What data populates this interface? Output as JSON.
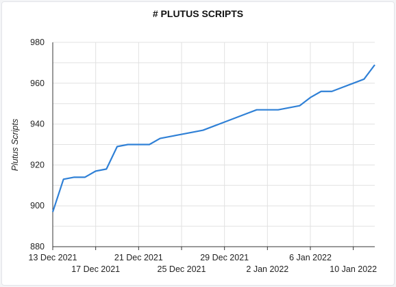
{
  "chart_data": {
    "type": "line",
    "title": "# PLUTUS SCRIPTS",
    "xlabel": "",
    "ylabel": "Plutus Scripts",
    "ylim": [
      880,
      980
    ],
    "yticks": [
      880,
      900,
      920,
      940,
      960,
      980
    ],
    "xlim": [
      "2021-12-13",
      "2022-01-12"
    ],
    "x_tick_labels": [
      {
        "date": "2021-12-13",
        "label": "13 Dec 2021",
        "row": 0
      },
      {
        "date": "2021-12-17",
        "label": "17 Dec 2021",
        "row": 1
      },
      {
        "date": "2021-12-21",
        "label": "21 Dec 2021",
        "row": 0
      },
      {
        "date": "2021-12-25",
        "label": "25 Dec 2021",
        "row": 1
      },
      {
        "date": "2021-12-29",
        "label": "29 Dec 2021",
        "row": 0
      },
      {
        "date": "2022-01-02",
        "label": "2 Jan 2022",
        "row": 1
      },
      {
        "date": "2022-01-06",
        "label": "6 Jan 2022",
        "row": 0
      },
      {
        "date": "2022-01-10",
        "label": "10 Jan 2022",
        "row": 1
      }
    ],
    "grid": true,
    "color": "#2f80d6",
    "series": [
      {
        "x": [
          "2021-12-13",
          "2021-12-14",
          "2021-12-15",
          "2021-12-16",
          "2021-12-17",
          "2021-12-18",
          "2021-12-19",
          "2021-12-20",
          "2021-12-21",
          "2021-12-22",
          "2021-12-23",
          "2021-12-24",
          "2021-12-25",
          "2021-12-26",
          "2021-12-27",
          "2021-12-28",
          "2021-12-29",
          "2021-12-30",
          "2021-12-31",
          "2022-01-01",
          "2022-01-02",
          "2022-01-03",
          "2022-01-04",
          "2022-01-05",
          "2022-01-06",
          "2022-01-07",
          "2022-01-08",
          "2022-01-09",
          "2022-01-10",
          "2022-01-11",
          "2022-01-12"
        ],
        "values": [
          897,
          913,
          914,
          914,
          917,
          918,
          929,
          930,
          930,
          930,
          933,
          934,
          935,
          936,
          937,
          939,
          941,
          943,
          945,
          947,
          947,
          947,
          948,
          949,
          953,
          956,
          956,
          958,
          960,
          962,
          969
        ]
      }
    ]
  }
}
